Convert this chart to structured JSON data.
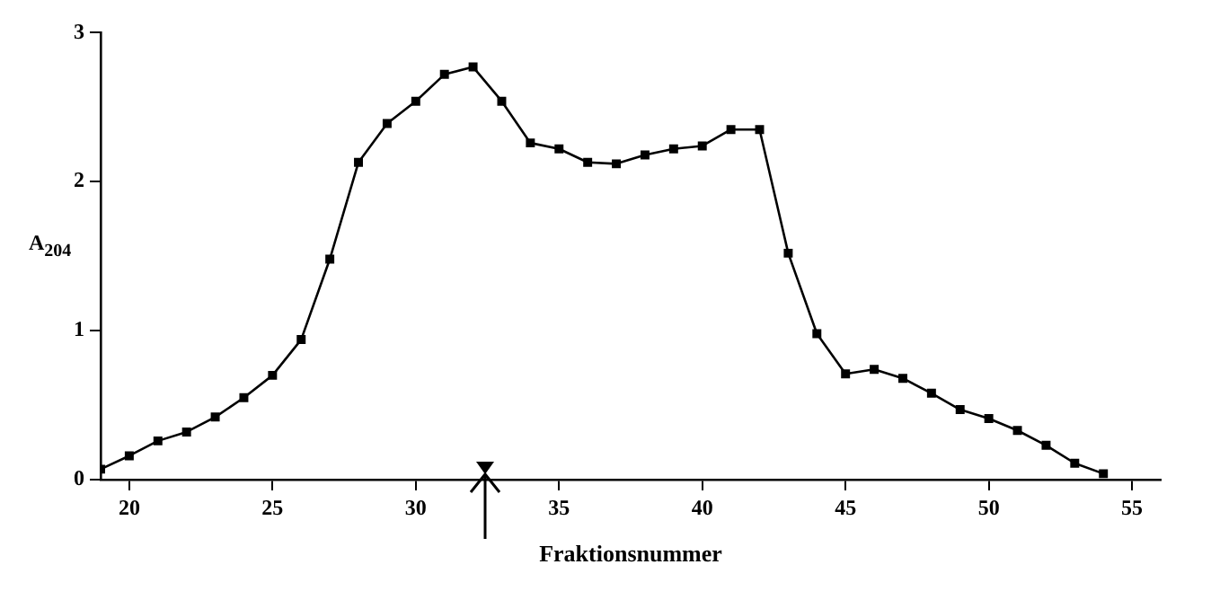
{
  "chart_data": {
    "type": "line",
    "xlabel": "Fraktionsnummer",
    "ylabel": "A$_{204}$",
    "x": [
      19,
      20,
      21,
      22,
      23,
      24,
      25,
      26,
      27,
      28,
      29,
      30,
      31,
      32,
      33,
      34,
      35,
      36,
      37,
      38,
      39,
      40,
      41,
      42,
      43,
      44,
      45,
      46,
      47,
      48,
      49,
      50,
      51,
      52,
      53,
      54
    ],
    "series": [
      {
        "color": "#000000",
        "values": [
          0.07,
          0.16,
          0.26,
          0.32,
          0.42,
          0.55,
          0.7,
          0.94,
          1.48,
          2.13,
          2.39,
          2.54,
          2.72,
          2.77,
          2.54,
          2.26,
          2.22,
          2.13,
          2.12,
          2.18,
          2.22,
          2.24,
          2.35,
          2.35,
          1.52,
          0.98,
          0.71,
          0.74,
          0.68,
          0.58,
          0.47,
          0.41,
          0.33,
          0.23,
          0.11,
          0.04
        ]
      }
    ],
    "xlim": [
      19,
      56
    ],
    "xticks": [
      20,
      25,
      30,
      35,
      40,
      45,
      50,
      55
    ],
    "ylim": [
      0,
      3
    ],
    "yticks": [
      0,
      1,
      2,
      3
    ],
    "grid": false,
    "legend": false,
    "marker": "square",
    "line_style": "solid"
  }
}
